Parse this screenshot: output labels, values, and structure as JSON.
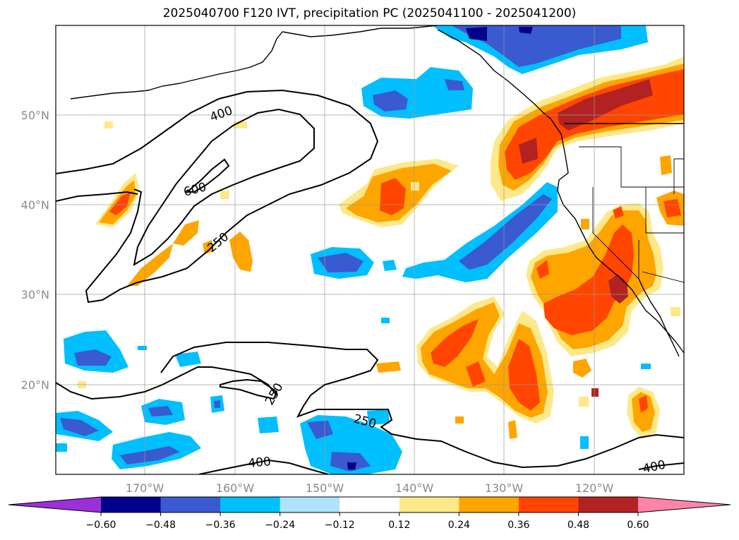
{
  "title": "2025040700 F120 IVT, precipitation PC (2025041100 - 2025041200)",
  "longitude_labels": [
    "170°W",
    "160°W",
    "150°W",
    "140°W",
    "130°W",
    "120°W"
  ],
  "latitude_labels": [
    "50°N",
    "40°N",
    "30°N",
    "20°N"
  ],
  "ivt_contours": {
    "labels": [
      "400",
      "600",
      "250",
      "250",
      "250",
      "400",
      "400"
    ]
  },
  "colorbar": {
    "ticks": [
      "−0.60",
      "−0.48",
      "−0.36",
      "−0.24",
      "−0.12",
      "0.12",
      "0.24",
      "0.36",
      "0.48",
      "0.60"
    ],
    "colors": [
      "#9b30d9",
      "#00008b",
      "#3a5acf",
      "#00bfff",
      "#aee3fb",
      "#ffffff",
      "#fde98a",
      "#ffa500",
      "#ff4500",
      "#b22222",
      "#ff85a8"
    ]
  },
  "precip_colors": {
    "neg_light": "#aee3fb",
    "neg_mid": "#00bfff",
    "neg_strong": "#3a5acf",
    "neg_max": "#00008b",
    "pos_light": "#fde98a",
    "pos_mid": "#ffa500",
    "pos_strong": "#ff4500",
    "pos_max": "#b22222"
  }
}
